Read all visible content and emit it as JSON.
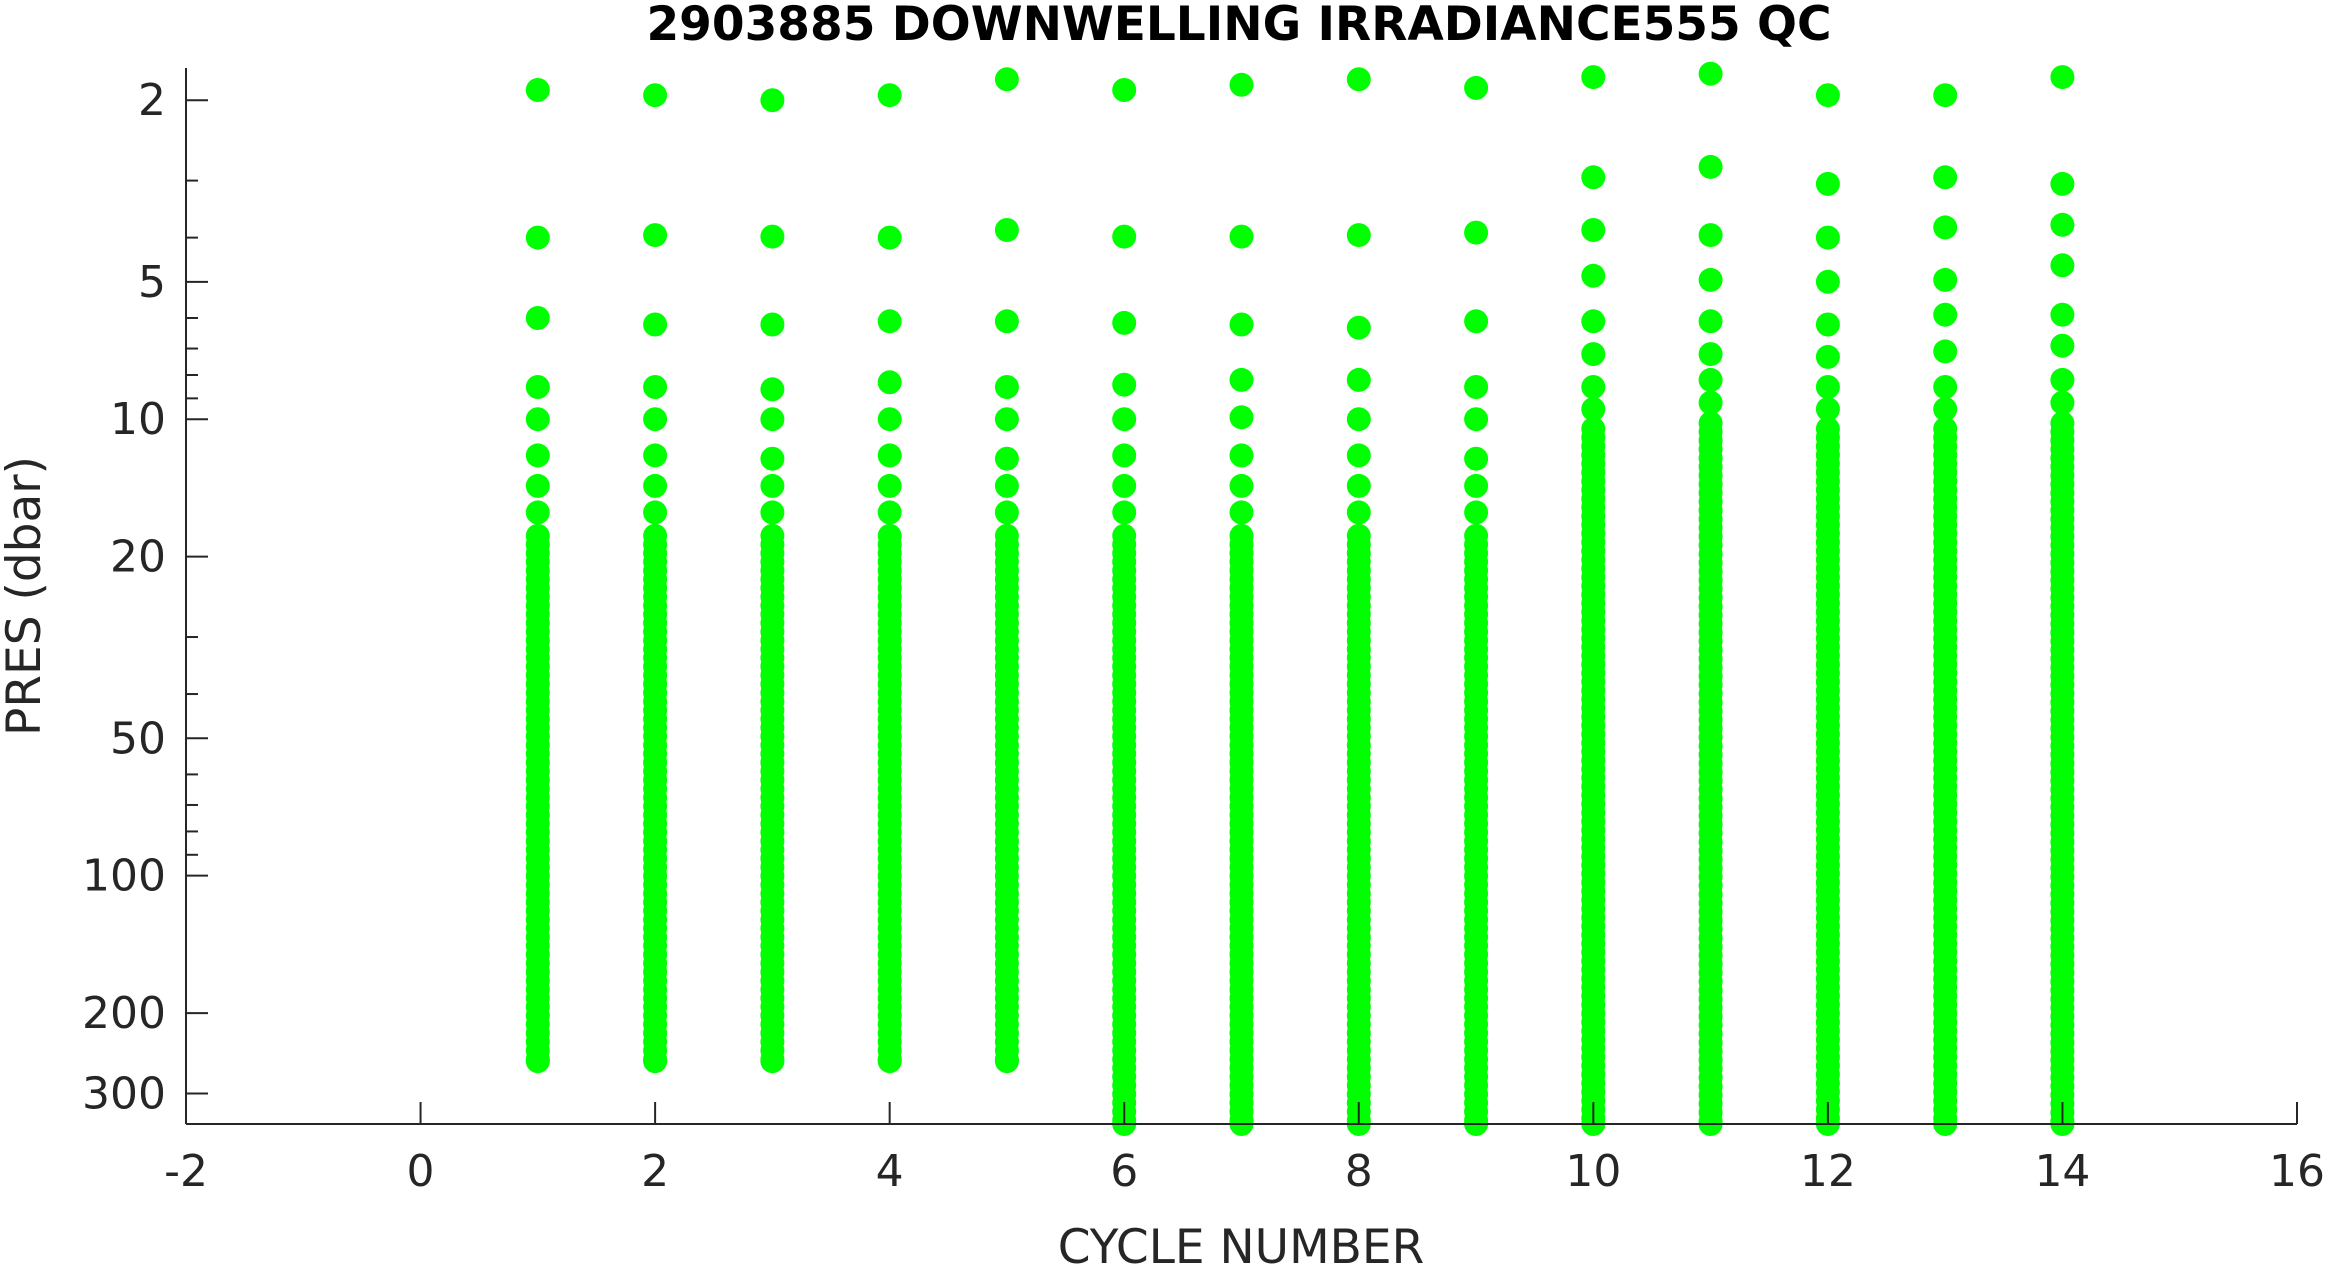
{
  "chart_data": {
    "type": "scatter",
    "title": "2903885  DOWNWELLING IRRADIANCE555 QC",
    "xlabel": "CYCLE NUMBER",
    "ylabel": "PRES (dbar)",
    "xlim": [
      -2,
      16
    ],
    "ylim": [
      1.7,
      350
    ],
    "y_scale": "log",
    "y_reversed": true,
    "grid": false,
    "marker_color": "#00ff00",
    "x_ticks": [
      -2,
      0,
      2,
      4,
      6,
      8,
      10,
      12,
      14,
      16
    ],
    "x_tick_labels": [
      "-2",
      "0",
      "2",
      "4",
      "6",
      "8",
      "10",
      "12",
      "14",
      "16"
    ],
    "y_ticks": [
      2,
      5,
      10,
      20,
      50,
      100,
      200,
      300
    ],
    "y_tick_labels": [
      "2",
      "5",
      "10",
      "20",
      "50",
      "100",
      "200",
      "300"
    ],
    "y_minor_ticks": [
      3,
      4,
      6,
      7,
      8,
      9,
      30,
      40,
      60,
      70,
      80,
      90
    ],
    "series": [
      {
        "cycle": 1,
        "pressures": [
          1.9,
          4.0,
          6.0,
          8.5,
          10,
          12,
          14,
          16,
          18
        ],
        "max_pres": 255
      },
      {
        "cycle": 2,
        "pressures": [
          1.95,
          3.95,
          6.2,
          8.5,
          10,
          12,
          14,
          16,
          18
        ],
        "max_pres": 255
      },
      {
        "cycle": 3,
        "pressures": [
          2.0,
          3.98,
          6.2,
          8.6,
          10,
          12.2,
          14,
          16,
          18
        ],
        "max_pres": 255
      },
      {
        "cycle": 4,
        "pressures": [
          1.95,
          4.0,
          6.1,
          8.3,
          10,
          12,
          14,
          16,
          18
        ],
        "max_pres": 255
      },
      {
        "cycle": 5,
        "pressures": [
          1.8,
          3.85,
          6.1,
          8.5,
          10,
          12.2,
          14,
          16,
          18
        ],
        "max_pres": 255
      },
      {
        "cycle": 6,
        "pressures": [
          1.9,
          3.98,
          6.15,
          8.4,
          10,
          12,
          14,
          16,
          18
        ],
        "max_pres": 350
      },
      {
        "cycle": 7,
        "pressures": [
          1.85,
          3.98,
          6.2,
          8.2,
          9.9,
          12,
          14,
          16,
          18
        ],
        "max_pres": 350
      },
      {
        "cycle": 8,
        "pressures": [
          1.8,
          3.95,
          6.3,
          8.2,
          10,
          12,
          14,
          16,
          18
        ],
        "max_pres": 350
      },
      {
        "cycle": 9,
        "pressures": [
          1.88,
          3.9,
          6.1,
          8.5,
          10,
          12.2,
          14,
          16,
          18
        ],
        "max_pres": 350
      },
      {
        "cycle": 10,
        "pressures": [
          1.78,
          2.95,
          3.85,
          4.85,
          6.1,
          7.2,
          8.5,
          9.5,
          10.5
        ],
        "max_pres": 350
      },
      {
        "cycle": 11,
        "pressures": [
          1.75,
          2.8,
          3.95,
          4.95,
          6.1,
          7.2,
          8.2,
          9.2,
          10.2
        ],
        "max_pres": 350
      },
      {
        "cycle": 12,
        "pressures": [
          1.95,
          3.05,
          4.0,
          5.0,
          6.2,
          7.3,
          8.5,
          9.5,
          10.5
        ],
        "max_pres": 350
      },
      {
        "cycle": 13,
        "pressures": [
          1.95,
          2.95,
          3.8,
          4.95,
          5.9,
          7.1,
          8.5,
          9.5,
          10.5
        ],
        "max_pres": 350
      },
      {
        "cycle": 14,
        "pressures": [
          1.78,
          3.05,
          3.75,
          4.6,
          5.9,
          6.9,
          8.2,
          9.2,
          10.2
        ],
        "max_pres": 350
      }
    ]
  }
}
